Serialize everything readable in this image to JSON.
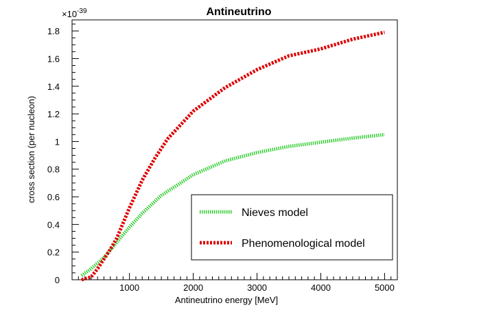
{
  "chart_data": {
    "type": "line",
    "title": "Antineutrino",
    "xlabel": "Antineutrino energy [MeV]",
    "ylabel": "cross section (per nucleon)",
    "y_exponent_label": "×10",
    "y_exponent_power": "-39",
    "xlim": [
      100,
      5200
    ],
    "ylim": [
      0,
      1.88
    ],
    "x_ticks": [
      1000,
      2000,
      3000,
      4000,
      5000
    ],
    "x_tick_labels": [
      "1000",
      "2000",
      "3000",
      "4000",
      "5000"
    ],
    "y_ticks": [
      0,
      0.2,
      0.4,
      0.6,
      0.8,
      1.0,
      1.2,
      1.4,
      1.6,
      1.8
    ],
    "y_tick_labels": [
      "0",
      "0.2",
      "0.4",
      "0.6",
      "0.8",
      "1",
      "1.2",
      "1.4",
      "1.6",
      "1.8"
    ],
    "grid": false,
    "legend_position": "bottom-right",
    "series": [
      {
        "name": "Nieves model",
        "color": "#33cc33",
        "style": "dotted",
        "x": [
          250,
          400,
          600,
          800,
          1000,
          1200,
          1500,
          2000,
          2500,
          3000,
          3500,
          4000,
          4500,
          5000
        ],
        "y": [
          0.03,
          0.08,
          0.16,
          0.27,
          0.38,
          0.48,
          0.61,
          0.76,
          0.86,
          0.92,
          0.965,
          0.995,
          1.025,
          1.05
        ]
      },
      {
        "name": "Phenomenological model",
        "color": "#dd0000",
        "style": "dotted",
        "x": [
          250,
          400,
          500,
          600,
          700,
          800,
          1000,
          1200,
          1400,
          1600,
          2000,
          2500,
          3000,
          3500,
          4000,
          4500,
          5000
        ],
        "y": [
          0.0,
          0.02,
          0.08,
          0.15,
          0.22,
          0.3,
          0.52,
          0.72,
          0.88,
          1.02,
          1.22,
          1.39,
          1.52,
          1.62,
          1.67,
          1.74,
          1.79
        ]
      }
    ]
  }
}
